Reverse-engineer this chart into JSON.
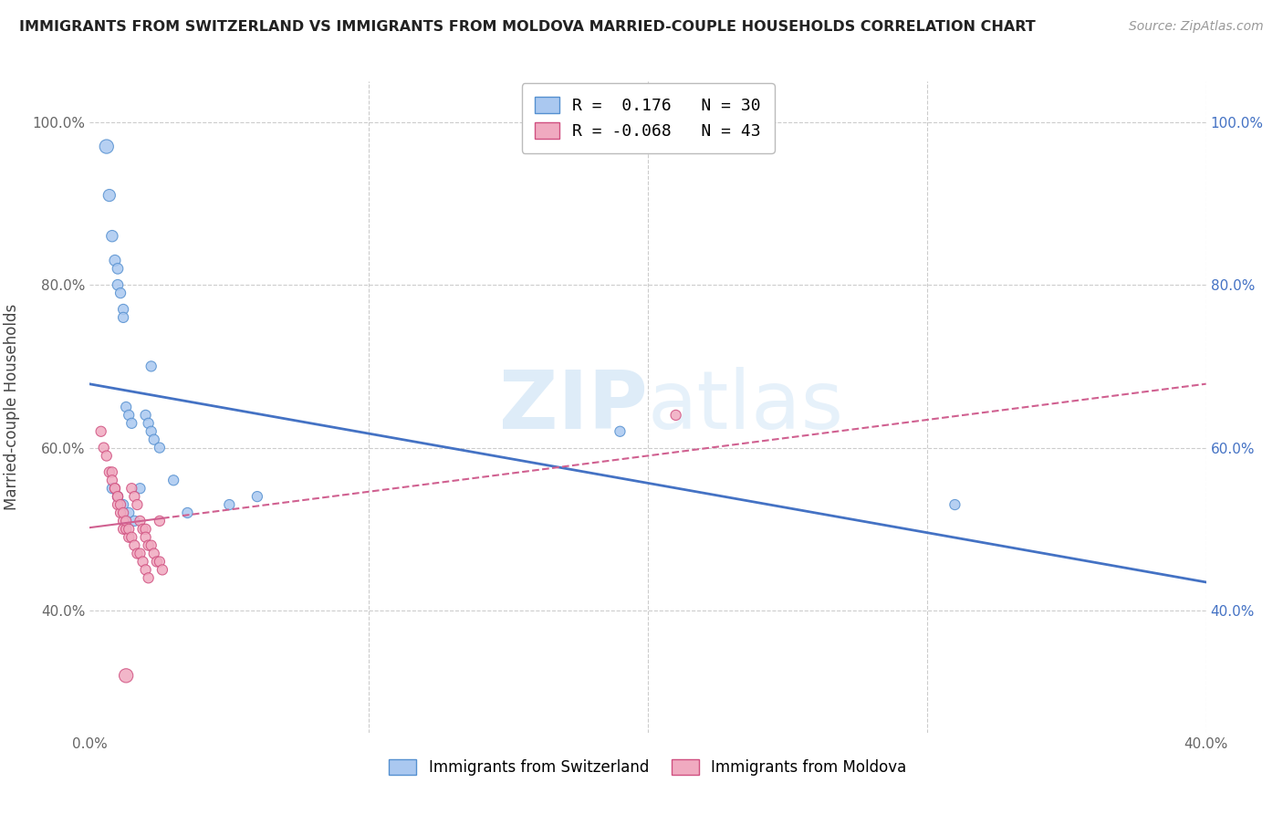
{
  "title": "IMMIGRANTS FROM SWITZERLAND VS IMMIGRANTS FROM MOLDOVA MARRIED-COUPLE HOUSEHOLDS CORRELATION CHART",
  "source": "Source: ZipAtlas.com",
  "ylabel": "Married-couple Households",
  "xlim": [
    0.0,
    0.4
  ],
  "ylim": [
    0.25,
    1.05
  ],
  "xticks": [
    0.0,
    0.1,
    0.2,
    0.3,
    0.4
  ],
  "xticklabels": [
    "0.0%",
    "",
    "",
    "",
    "40.0%"
  ],
  "yticks": [
    0.4,
    0.6,
    0.8,
    1.0
  ],
  "yticklabels": [
    "40.0%",
    "60.0%",
    "80.0%",
    "100.0%"
  ],
  "switzerland_color": "#aac8f0",
  "moldova_color": "#f0aac0",
  "switzerland_edge_color": "#5590d0",
  "moldova_edge_color": "#d05080",
  "switzerland_line_color": "#4472c4",
  "moldova_line_color": "#d06090",
  "R_switzerland": 0.176,
  "N_switzerland": 30,
  "R_moldova": -0.068,
  "N_moldova": 43,
  "watermark": "ZIPatlas",
  "background_color": "#ffffff",
  "grid_color": "#cccccc",
  "swiss_x": [
    0.006,
    0.007,
    0.008,
    0.009,
    0.01,
    0.01,
    0.011,
    0.012,
    0.012,
    0.013,
    0.014,
    0.015,
    0.018,
    0.02,
    0.021,
    0.022,
    0.023,
    0.025,
    0.03,
    0.035,
    0.05,
    0.06,
    0.008,
    0.01,
    0.012,
    0.014,
    0.016,
    0.19,
    0.31,
    0.022
  ],
  "swiss_y": [
    0.97,
    0.91,
    0.86,
    0.83,
    0.82,
    0.8,
    0.79,
    0.77,
    0.76,
    0.65,
    0.64,
    0.63,
    0.55,
    0.64,
    0.63,
    0.62,
    0.61,
    0.6,
    0.56,
    0.52,
    0.53,
    0.54,
    0.55,
    0.54,
    0.53,
    0.52,
    0.51,
    0.62,
    0.53,
    0.7
  ],
  "swiss_size": [
    120,
    90,
    80,
    75,
    70,
    70,
    65,
    65,
    65,
    65,
    65,
    65,
    65,
    65,
    65,
    65,
    65,
    65,
    65,
    65,
    65,
    65,
    65,
    65,
    65,
    65,
    65,
    65,
    65,
    65
  ],
  "moldova_x": [
    0.004,
    0.005,
    0.006,
    0.007,
    0.008,
    0.009,
    0.01,
    0.01,
    0.011,
    0.012,
    0.012,
    0.013,
    0.014,
    0.015,
    0.016,
    0.017,
    0.018,
    0.019,
    0.02,
    0.02,
    0.021,
    0.022,
    0.023,
    0.024,
    0.025,
    0.026,
    0.008,
    0.009,
    0.01,
    0.011,
    0.012,
    0.013,
    0.014,
    0.015,
    0.016,
    0.017,
    0.018,
    0.019,
    0.02,
    0.021,
    0.025,
    0.21,
    0.013
  ],
  "moldova_y": [
    0.62,
    0.6,
    0.59,
    0.57,
    0.57,
    0.55,
    0.54,
    0.53,
    0.52,
    0.51,
    0.5,
    0.5,
    0.49,
    0.55,
    0.54,
    0.53,
    0.51,
    0.5,
    0.5,
    0.49,
    0.48,
    0.48,
    0.47,
    0.46,
    0.46,
    0.45,
    0.56,
    0.55,
    0.54,
    0.53,
    0.52,
    0.51,
    0.5,
    0.49,
    0.48,
    0.47,
    0.47,
    0.46,
    0.45,
    0.44,
    0.51,
    0.64,
    0.32
  ],
  "moldova_size": [
    65,
    65,
    65,
    65,
    65,
    65,
    65,
    65,
    65,
    65,
    65,
    65,
    65,
    65,
    65,
    65,
    65,
    65,
    65,
    65,
    65,
    65,
    65,
    65,
    65,
    65,
    65,
    65,
    65,
    65,
    65,
    65,
    65,
    65,
    65,
    65,
    65,
    65,
    65,
    65,
    65,
    65,
    120
  ]
}
